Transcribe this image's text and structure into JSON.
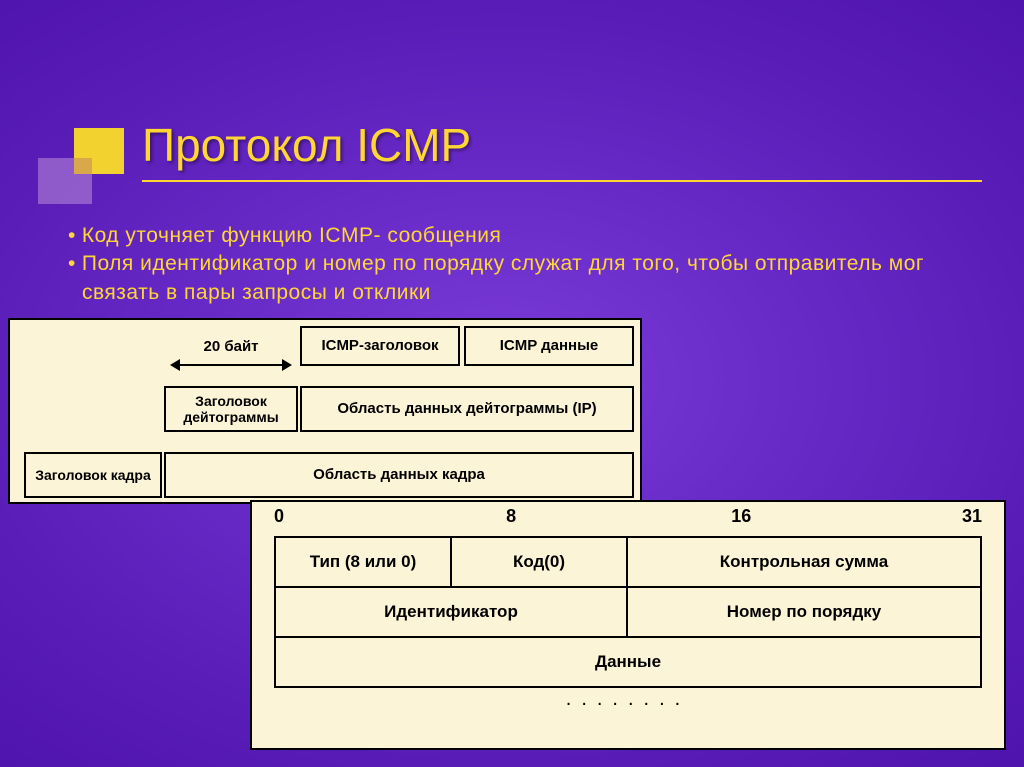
{
  "slide": {
    "title": "Протокол ICMP",
    "title_color": "#ffd633",
    "title_fontsize": 46,
    "rule_color": "#ffd633",
    "background_gradient": [
      "#7a3bd9",
      "#5a1db8",
      "#4a0fa8"
    ],
    "decor": {
      "sq1_color": "#f2d22e",
      "sq2_color": "#9966cc",
      "sq3_color": "#d9a84a"
    },
    "bullets": [
      "Код уточняет   функцию  ICMP- сообщения",
      "Поля идентификатор и   номер по  порядку служат  для  того, чтобы отправитель мог  связать  в пары  запросы и  отклики"
    ],
    "bullet_color": "#ffd633",
    "bullet_fontsize": 21
  },
  "diagram_encapsulation": {
    "type": "encapsulation-layers",
    "background_color": "#fbf4d6",
    "border_color": "#000000",
    "label_fontsize": 15,
    "label_fontweight": "bold",
    "arrow_label": "20 байт",
    "rows": {
      "icmp": {
        "header": "ICMP-заголовок",
        "data": "ICMP данные"
      },
      "ip": {
        "header": "Заголовок дейтограммы",
        "data": "Область данных дейтограммы (IP)"
      },
      "frame": {
        "header": "Заголовок кадра",
        "data": "Область данных кадра"
      }
    }
  },
  "diagram_icmp_header": {
    "type": "packet-header",
    "background_color": "#fbf4d6",
    "border_color": "#000000",
    "bit_labels": [
      "0",
      "8",
      "16",
      "31"
    ],
    "bit_fontsize": 18,
    "cell_fontsize": 17,
    "rows": [
      [
        {
          "label": "Тип (8 или 0)",
          "bits": 8
        },
        {
          "label": "Код(0)",
          "bits": 8
        },
        {
          "label": "Контрольная сумма",
          "bits": 16
        }
      ],
      [
        {
          "label": "Идентификатор",
          "bits": 16
        },
        {
          "label": "Номер по порядку",
          "bits": 16
        }
      ],
      [
        {
          "label": "Данные",
          "bits": 32
        }
      ]
    ],
    "ellipsis": "........"
  }
}
